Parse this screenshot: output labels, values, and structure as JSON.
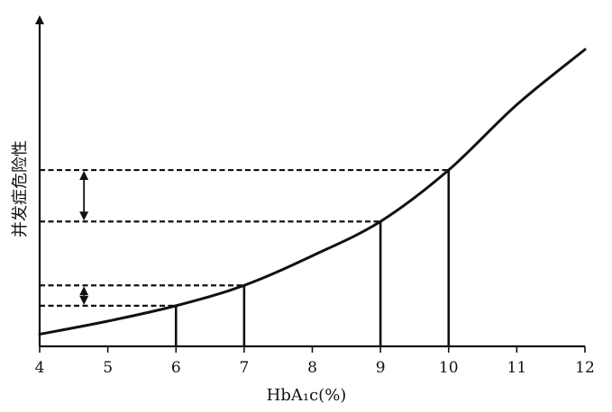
{
  "chart_data": {
    "type": "line",
    "title": "",
    "xlabel": "HbA₁c(%)",
    "ylabel": "并发症危险性",
    "xlim": [
      4,
      12
    ],
    "ylim": [
      0,
      1
    ],
    "xticks": [
      "4",
      "5",
      "6",
      "7",
      "8",
      "9",
      "10",
      "11",
      "12"
    ],
    "series": [
      {
        "x": [
          4,
          5,
          6,
          7,
          8,
          9,
          10,
          11,
          12
        ],
        "y": [
          0.02,
          0.065,
          0.118,
          0.188,
          0.29,
          0.408,
          0.585,
          0.81,
          1.0
        ]
      }
    ],
    "markers": [
      {
        "x": 6,
        "y": 0.118
      },
      {
        "x": 7,
        "y": 0.188
      },
      {
        "x": 9,
        "y": 0.408
      },
      {
        "x": 10,
        "y": 0.585
      }
    ],
    "arrows": [
      {
        "x": 4.65,
        "y1": 0.118,
        "y2": 0.188
      },
      {
        "x": 4.65,
        "y1": 0.408,
        "y2": 0.585
      }
    ],
    "grid": false
  }
}
